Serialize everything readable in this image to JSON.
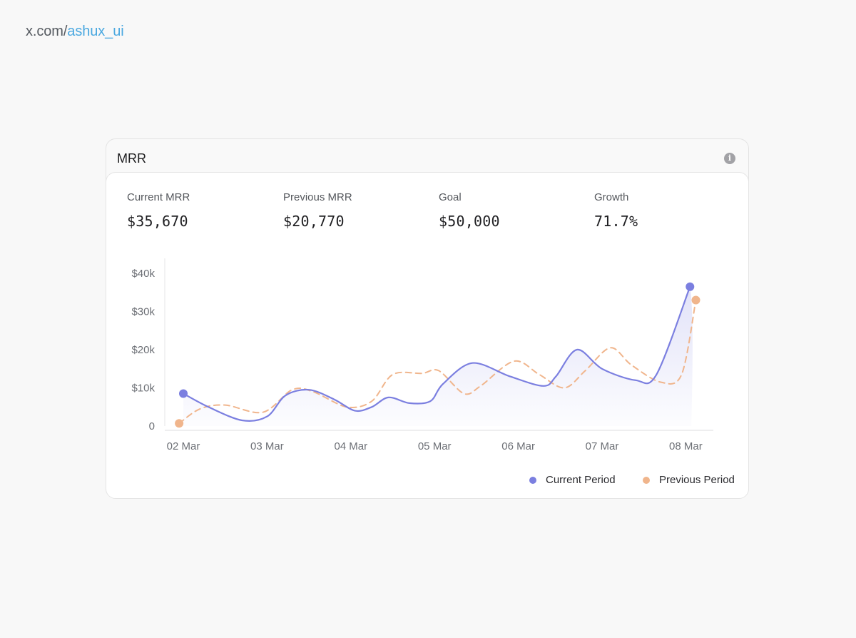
{
  "header": {
    "handle_prefix": "x.com/",
    "handle_user": "ashux_ui"
  },
  "card": {
    "title": "MRR",
    "info_icon": "info-icon"
  },
  "stats": [
    {
      "label": "Current MRR",
      "value": "$35,670"
    },
    {
      "label": "Previous MRR",
      "value": "$20,770"
    },
    {
      "label": "Goal",
      "value": "$50,000"
    },
    {
      "label": "Growth",
      "value": "71.7%"
    }
  ],
  "legend": {
    "current": "Current Period",
    "previous": "Previous Period"
  },
  "colors": {
    "current": "#7b7fe0",
    "previous": "#f0b58c",
    "handle_link": "#4aa8e0"
  },
  "chart_data": {
    "type": "line",
    "categories": [
      "02 Mar",
      "03 Mar",
      "04 Mar",
      "05 Mar",
      "06 Mar",
      "07 Mar",
      "08 Mar"
    ],
    "ylim": [
      0,
      40000
    ],
    "y_ticks": [
      0,
      10000,
      20000,
      30000,
      40000
    ],
    "y_tick_labels": [
      "0",
      "$10k",
      "$20k",
      "$30k",
      "$40k"
    ],
    "grid": false,
    "legend_position": "bottom-right",
    "series": [
      {
        "name": "Current Period",
        "color": "#7b7fe0",
        "style": "solid-area",
        "points": [
          [
            0,
            8500
          ],
          [
            0.3,
            5000
          ],
          [
            0.7,
            1500
          ],
          [
            1.0,
            2500
          ],
          [
            1.22,
            8000
          ],
          [
            1.5,
            9500
          ],
          [
            1.8,
            7000
          ],
          [
            2.05,
            4000
          ],
          [
            2.25,
            5000
          ],
          [
            2.45,
            7500
          ],
          [
            2.7,
            6000
          ],
          [
            2.95,
            6500
          ],
          [
            3.1,
            11000
          ],
          [
            3.45,
            16500
          ],
          [
            3.9,
            13000
          ],
          [
            4.3,
            10500
          ],
          [
            4.45,
            13000
          ],
          [
            4.7,
            20000
          ],
          [
            5.0,
            15000
          ],
          [
            5.4,
            12000
          ],
          [
            5.65,
            13500
          ],
          [
            6.05,
            36500
          ]
        ]
      },
      {
        "name": "Previous Period",
        "color": "#f0b58c",
        "style": "dashed",
        "points": [
          [
            -0.05,
            700
          ],
          [
            0.2,
            4500
          ],
          [
            0.5,
            5500
          ],
          [
            0.95,
            3600
          ],
          [
            1.3,
            9500
          ],
          [
            1.55,
            9000
          ],
          [
            1.95,
            5000
          ],
          [
            2.25,
            6500
          ],
          [
            2.5,
            13500
          ],
          [
            2.85,
            13800
          ],
          [
            3.05,
            14500
          ],
          [
            3.35,
            8500
          ],
          [
            3.55,
            10500
          ],
          [
            3.95,
            17000
          ],
          [
            4.25,
            13500
          ],
          [
            4.55,
            10000
          ],
          [
            4.8,
            14500
          ],
          [
            5.1,
            20500
          ],
          [
            5.35,
            16000
          ],
          [
            5.7,
            11500
          ],
          [
            5.95,
            13500
          ],
          [
            6.12,
            33000
          ]
        ]
      }
    ]
  }
}
